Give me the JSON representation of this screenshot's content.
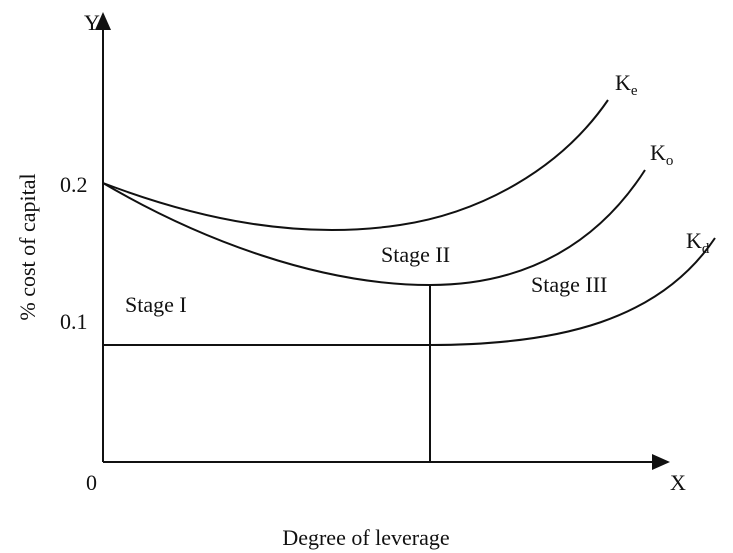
{
  "axes": {
    "y_label": "Y",
    "x_label": "X",
    "origin": "0",
    "y_marks": [
      "0.2",
      "0.1"
    ],
    "y_title": "% cost of capital",
    "x_title": "Degree of leverage"
  },
  "stages": [
    "Stage I",
    "Stage II",
    "Stage III"
  ],
  "curves": [
    {
      "main": "K",
      "sub": "e"
    },
    {
      "main": "K",
      "sub": "o"
    },
    {
      "main": "K",
      "sub": "d"
    }
  ]
}
